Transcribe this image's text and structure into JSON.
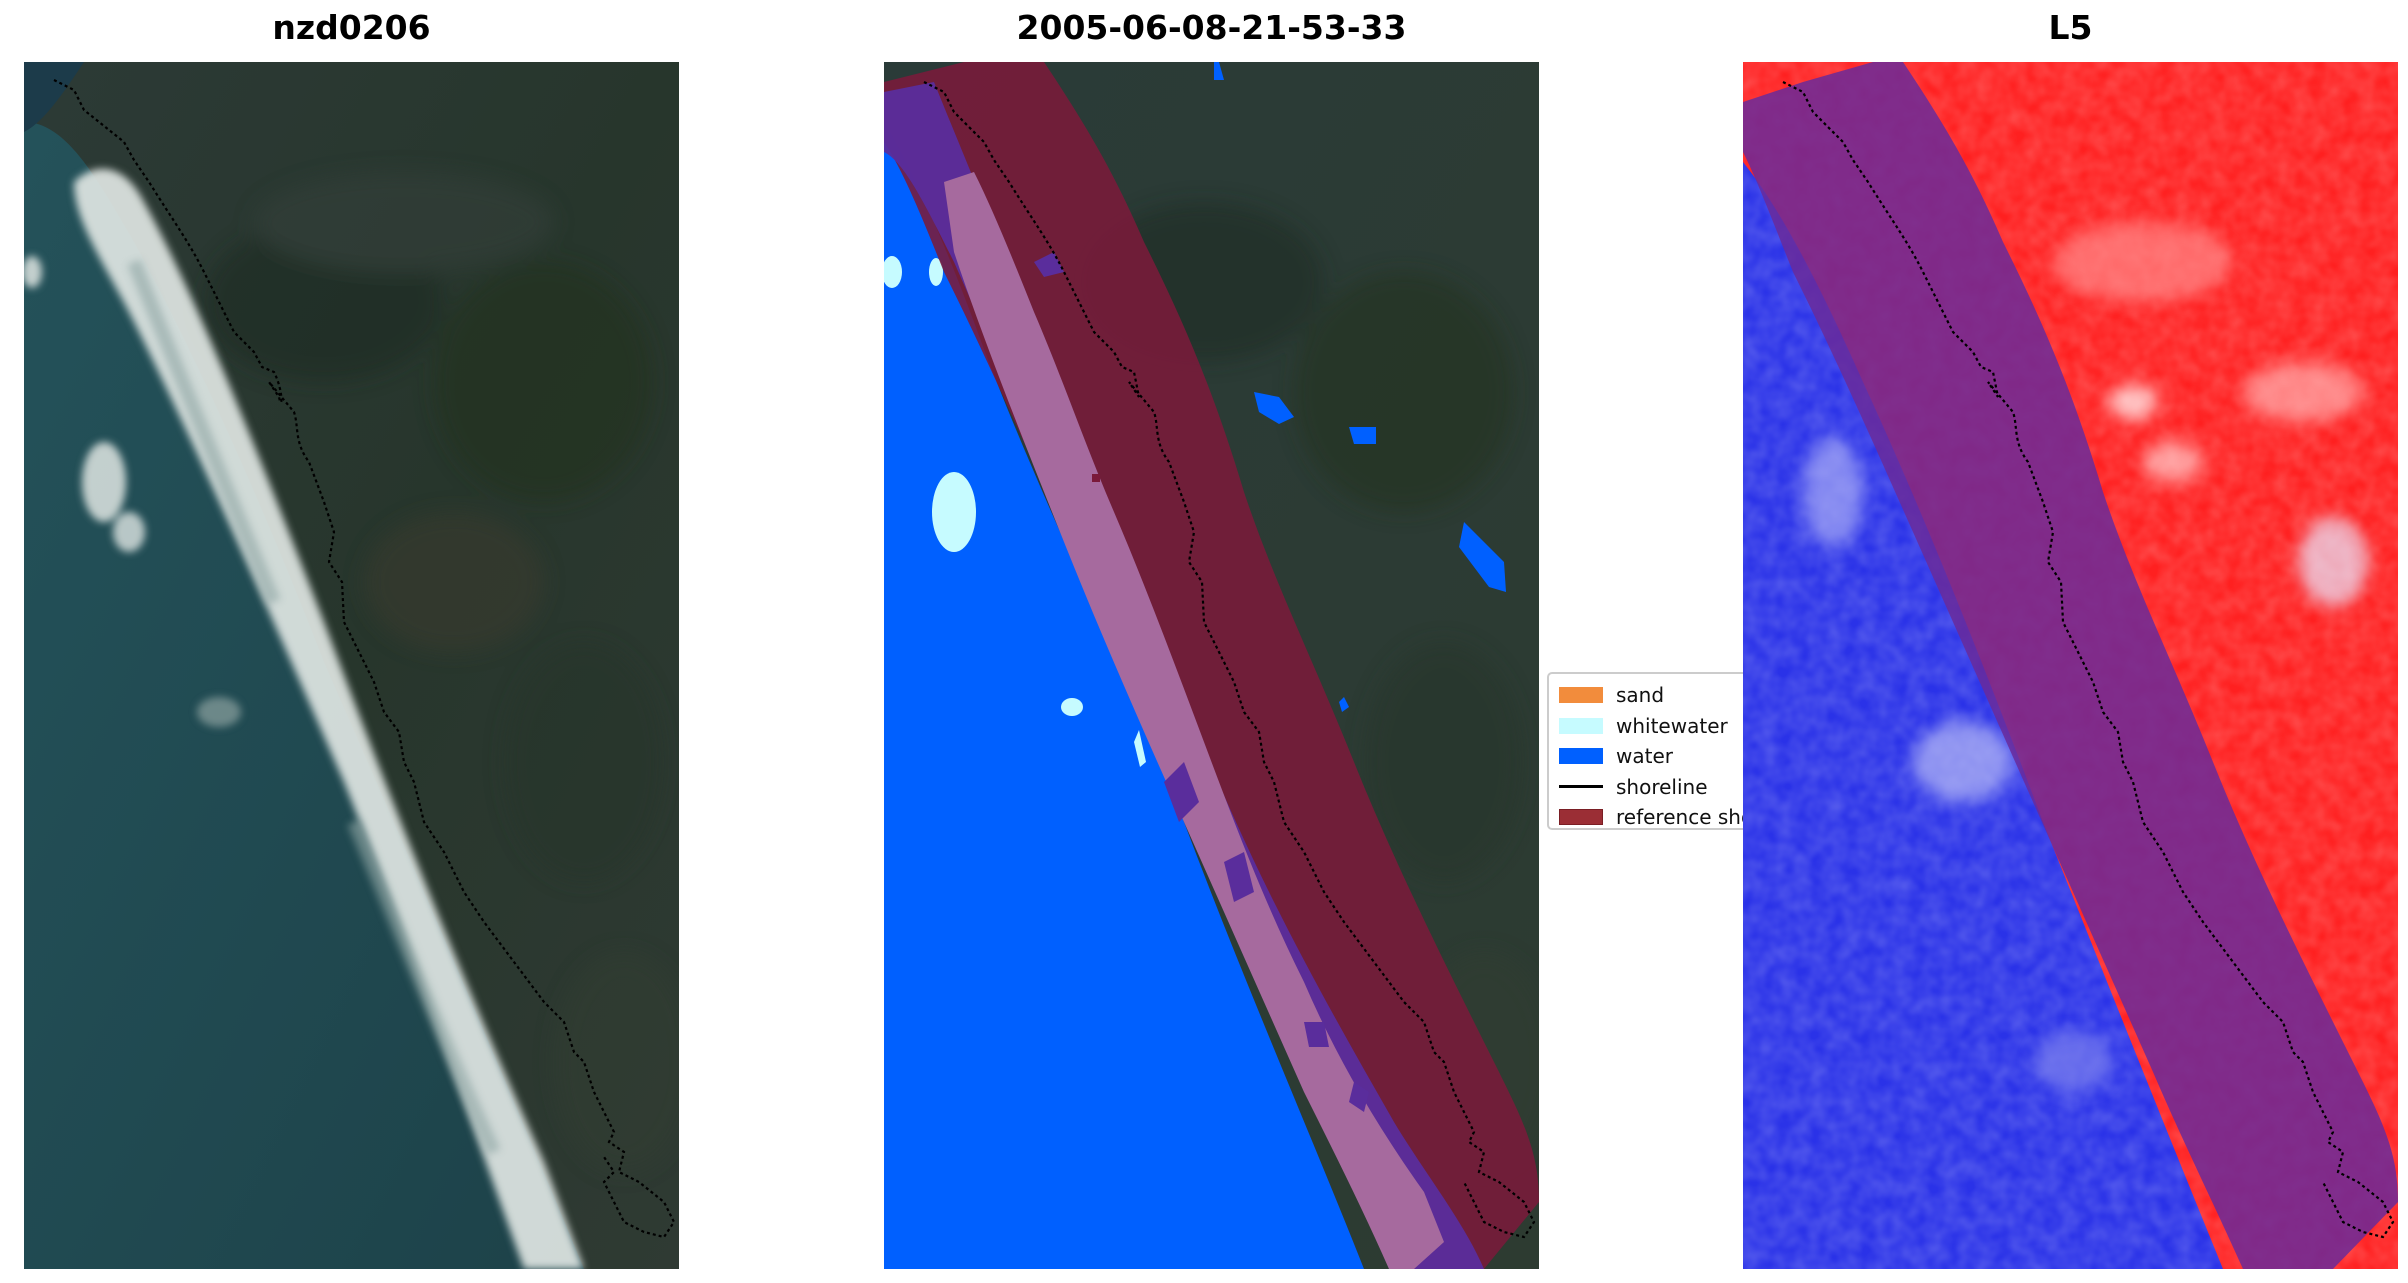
{
  "panels": [
    {
      "title": "nzd0206"
    },
    {
      "title": "2005-06-08-21-53-33"
    },
    {
      "title": "L5"
    }
  ],
  "legend": {
    "items": [
      {
        "label": "sand",
        "color": "#f28c3c",
        "kind": "patch"
      },
      {
        "label": "whitewater",
        "color": "#c6fbff",
        "kind": "patch"
      },
      {
        "label": "water",
        "color": "#0060ff",
        "kind": "patch"
      },
      {
        "label": "shoreline",
        "color": "#000000",
        "kind": "line"
      },
      {
        "label": "reference shoreline buffer",
        "color": "#9b2e35",
        "kind": "patch"
      }
    ]
  },
  "colors": {
    "land_dark": "#24302c",
    "sea": "#1f4a52",
    "surf": "#dfe6e3",
    "water_class": "#0060ff",
    "buffer": "#7a1a3a",
    "buffer_overlay_violet": "#5a2d9c",
    "sand_overlay_mauve": "#a66a9e",
    "index_red": "#ff1a1a",
    "index_blue": "#2a32e8"
  }
}
